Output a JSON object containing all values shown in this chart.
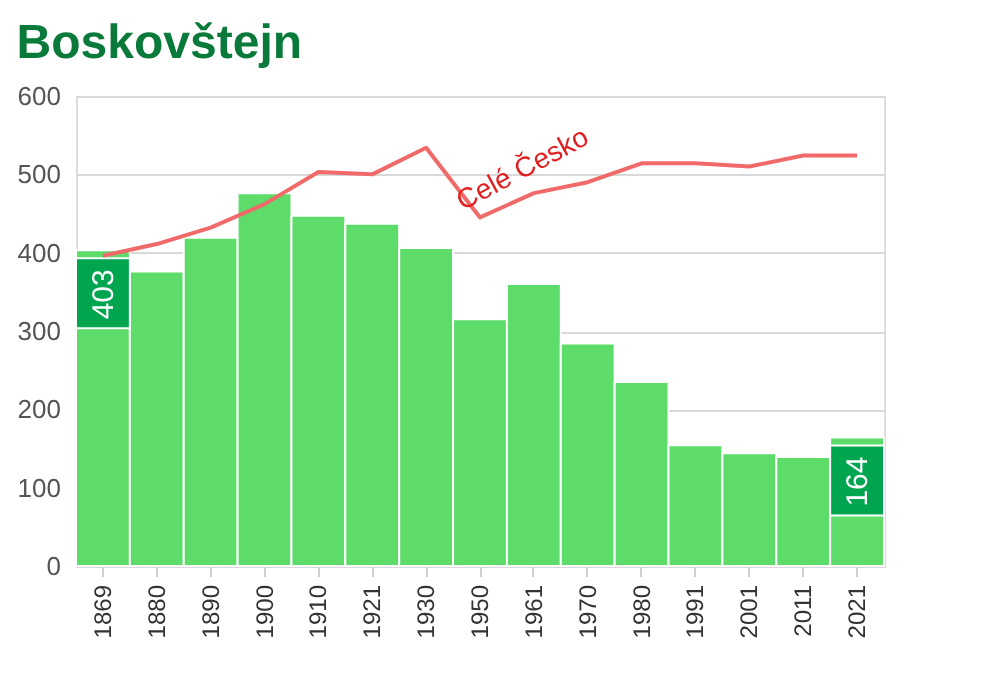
{
  "chart_data": {
    "type": "bar",
    "title": "Boskovštejn",
    "categories": [
      "1869",
      "1880",
      "1890",
      "1900",
      "1910",
      "1921",
      "1930",
      "1950",
      "1961",
      "1970",
      "1980",
      "1991",
      "2001",
      "2011",
      "2021"
    ],
    "series": [
      {
        "color": "#5ddc6a",
        "values": [
          403,
          376,
          419,
          476,
          447,
          437,
          406,
          315,
          360,
          284,
          235,
          154,
          144,
          139,
          164
        ],
        "value_labels": [
          "403",
          null,
          null,
          null,
          null,
          null,
          null,
          null,
          null,
          null,
          null,
          null,
          null,
          null,
          "164"
        ]
      },
      {
        "type": "line",
        "name": "Celé Česko",
        "color": "#f06a6a",
        "values": [
          396,
          411,
          432,
          462,
          503,
          500,
          534,
          445,
          476,
          490,
          514,
          514,
          510,
          524,
          524
        ]
      }
    ],
    "ylim": [
      0,
      600
    ],
    "yticks": [
      0,
      100,
      200,
      300,
      400,
      500,
      600
    ],
    "grid": "y"
  }
}
